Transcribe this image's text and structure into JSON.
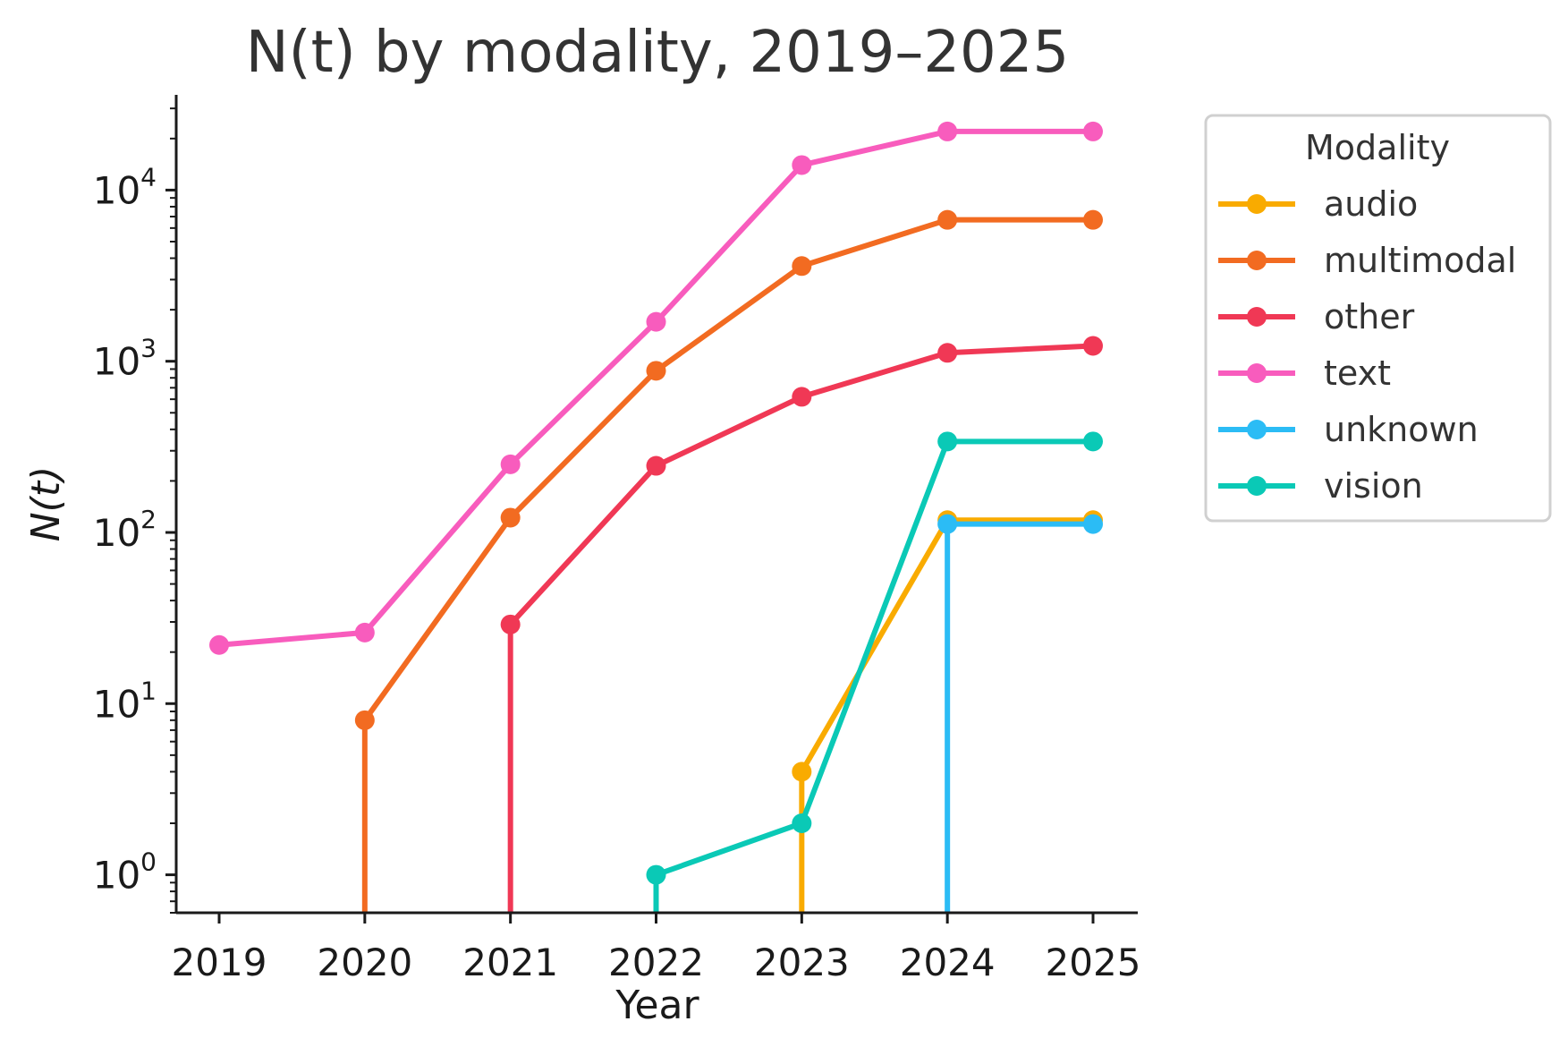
{
  "chart_data": {
    "type": "line",
    "title": "N(t) by modality, 2019–2025",
    "xlabel": "Year",
    "ylabel": "N(t)",
    "yscale": "log",
    "ylim": [
      0.6,
      36000
    ],
    "x": [
      2019,
      2020,
      2021,
      2022,
      2023,
      2024,
      2025
    ],
    "x_tick_labels": [
      "2019",
      "2020",
      "2021",
      "2022",
      "2023",
      "2024",
      "2025"
    ],
    "y_ticks": [
      {
        "value": 1,
        "base": "10",
        "exp": "0"
      },
      {
        "value": 10,
        "base": "10",
        "exp": "1"
      },
      {
        "value": 100,
        "base": "10",
        "exp": "2"
      },
      {
        "value": 1000,
        "base": "10",
        "exp": "3"
      },
      {
        "value": 10000,
        "base": "10",
        "exp": "4"
      }
    ],
    "legend": {
      "title": "Modality",
      "position": "outside-right"
    },
    "series": [
      {
        "name": "audio",
        "color": "#f9ab00",
        "values": [
          0,
          0,
          0,
          0,
          4,
          118,
          118
        ]
      },
      {
        "name": "multimodal",
        "color": "#f26b21",
        "values": [
          0,
          8,
          122,
          880,
          3600,
          6700,
          6700
        ]
      },
      {
        "name": "other",
        "color": "#f03855",
        "values": [
          0,
          0,
          29,
          245,
          620,
          1120,
          1230
        ]
      },
      {
        "name": "text",
        "color": "#f85cbd",
        "values": [
          22,
          26,
          250,
          1700,
          14000,
          22000,
          22000
        ]
      },
      {
        "name": "unknown",
        "color": "#2bbcf5",
        "values": [
          0,
          0,
          0,
          0,
          0,
          112,
          112
        ]
      },
      {
        "name": "vision",
        "color": "#0ac9b6",
        "values": [
          0,
          0,
          0,
          1,
          2,
          340,
          340
        ]
      }
    ]
  }
}
